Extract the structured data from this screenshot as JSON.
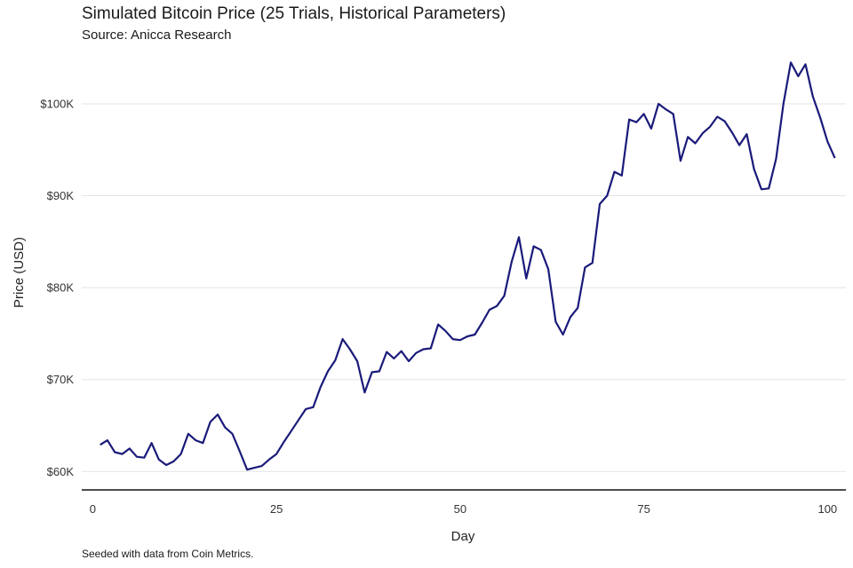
{
  "chart_data": {
    "type": "line",
    "title": "Simulated Bitcoin Price (25 Trials, Historical Parameters)",
    "subtitle": "Source: Anicca Research",
    "caption": "Seeded with data from Coin Metrics.",
    "xlabel": "Day",
    "ylabel": "Price (USD)",
    "xlim": [
      -1.5,
      102.5
    ],
    "ylim": [
      58000,
      105500
    ],
    "x_ticks": [
      0,
      25,
      50,
      75,
      100
    ],
    "x_tick_labels": [
      "0",
      "25",
      "50",
      "75",
      "100"
    ],
    "y_ticks": [
      60000,
      70000,
      80000,
      90000,
      100000
    ],
    "y_tick_labels": [
      "$60K",
      "$70K",
      "$80K",
      "$90K",
      "$100K"
    ],
    "grid": "horizontal",
    "legend": "none",
    "line_color": "#1a1a7a",
    "series": [
      {
        "x": [
          1,
          2,
          3,
          4,
          5,
          6,
          7,
          8,
          9,
          10,
          11,
          12,
          13,
          14,
          15,
          16,
          17,
          18,
          19,
          20,
          21,
          22,
          23,
          24,
          25,
          26,
          27,
          28,
          29,
          30,
          31,
          32,
          33,
          34,
          35,
          36,
          37,
          38,
          39,
          40,
          41,
          42,
          43,
          44,
          45,
          46,
          47,
          48,
          49,
          50,
          51,
          52,
          53,
          54,
          55,
          56,
          57,
          58,
          59,
          60,
          61,
          62,
          63,
          64,
          65,
          66,
          67,
          68,
          69,
          70,
          71,
          72,
          73,
          74,
          75,
          76,
          77,
          78,
          79,
          80,
          81,
          82,
          83,
          84,
          85,
          86,
          87,
          88,
          89,
          90,
          91,
          92,
          93,
          94,
          95,
          96,
          97,
          98,
          99,
          100,
          101
        ],
        "y": [
          62900,
          63400,
          62100,
          61900,
          62500,
          61600,
          61500,
          63100,
          61300,
          60700,
          61100,
          61900,
          64100,
          63400,
          63100,
          65400,
          66200,
          64800,
          64100,
          62200,
          60200,
          60400,
          60600,
          61300,
          61900,
          63200,
          64400,
          65600,
          66800,
          67000,
          69200,
          70900,
          72100,
          74400,
          73300,
          72000,
          68600,
          70800,
          70900,
          73000,
          72300,
          73100,
          72000,
          72900,
          73300,
          73400,
          76000,
          75300,
          74400,
          74300,
          74700,
          74900,
          76200,
          77600,
          78000,
          79100,
          82800,
          85500,
          81000,
          84500,
          84100,
          82000,
          76300,
          74900,
          76800,
          77800,
          82200,
          82700,
          89100,
          90000,
          92600,
          92200,
          98300,
          98000,
          98900,
          97300,
          100000,
          99400,
          98900,
          93800,
          96400,
          95700,
          96800,
          97500,
          98600,
          98100,
          96900,
          95500,
          96700,
          92900,
          90700,
          90800,
          94000,
          100000,
          104500,
          103000,
          104300,
          100800,
          98500,
          95900,
          94100
        ]
      }
    ]
  }
}
